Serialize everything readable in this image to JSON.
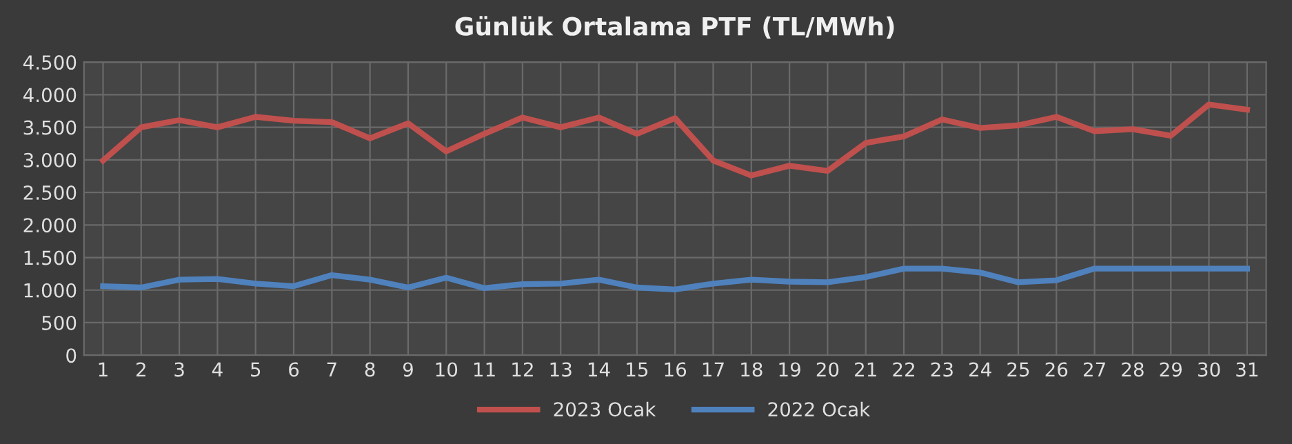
{
  "chart_data": {
    "type": "line",
    "title": "Günlük Ortalama PTF (TL/MWh)",
    "categories": [
      "1",
      "2",
      "3",
      "4",
      "5",
      "6",
      "7",
      "8",
      "9",
      "10",
      "11",
      "12",
      "13",
      "14",
      "15",
      "16",
      "17",
      "18",
      "19",
      "20",
      "21",
      "22",
      "23",
      "24",
      "25",
      "26",
      "27",
      "28",
      "29",
      "30",
      "31"
    ],
    "series": [
      {
        "name": "2023 Ocak",
        "color": "#c0504d",
        "values": [
          2990,
          3500,
          3610,
          3500,
          3660,
          3600,
          3580,
          3330,
          3560,
          3130,
          3400,
          3650,
          3500,
          3650,
          3400,
          3640,
          2990,
          2760,
          2910,
          2830,
          3260,
          3360,
          3620,
          3490,
          3530,
          3660,
          3440,
          3470,
          3370,
          3850,
          3770
        ]
      },
      {
        "name": "2022 Ocak",
        "color": "#4f81bd",
        "values": [
          1060,
          1040,
          1160,
          1170,
          1100,
          1060,
          1230,
          1160,
          1040,
          1190,
          1030,
          1090,
          1100,
          1160,
          1040,
          1010,
          1100,
          1160,
          1130,
          1120,
          1200,
          1330,
          1330,
          1270,
          1120,
          1150,
          1330,
          1330,
          1330,
          1330,
          1330
        ]
      }
    ],
    "ylim": [
      0,
      4500
    ],
    "yticks": [
      0,
      500,
      {
        "value": 1000,
        "label": "1.000"
      },
      {
        "value": 1500,
        "label": "1.500"
      },
      {
        "value": 2000,
        "label": "2.000"
      },
      {
        "value": 2500,
        "label": "2.500"
      },
      {
        "value": 3000,
        "label": "3.000"
      },
      {
        "value": 3500,
        "label": "3.500"
      },
      {
        "value": 4000,
        "label": "4.000"
      },
      {
        "value": 4500,
        "label": "4.500"
      }
    ],
    "grid": true,
    "legend": "bottom",
    "marker": "none",
    "line_style": "solid"
  }
}
